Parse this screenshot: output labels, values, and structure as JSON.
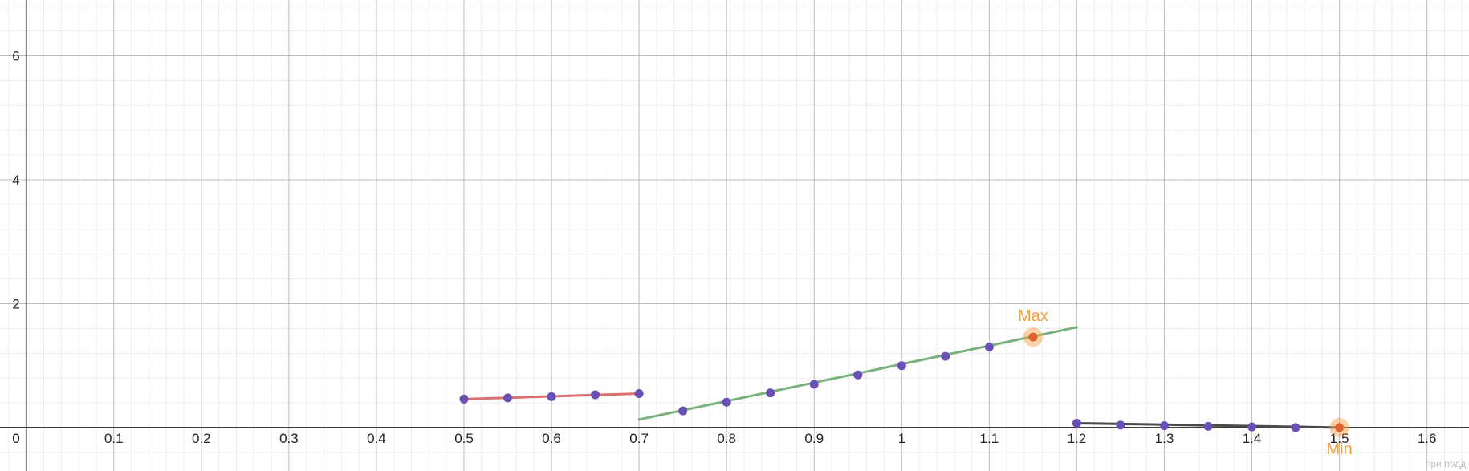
{
  "chart_data": {
    "type": "line",
    "title": "",
    "xlabel": "",
    "ylabel": "",
    "xlim": [
      -0.03,
      1.648
    ],
    "ylim": [
      -0.7,
      6.9
    ],
    "grid": true,
    "x_ticks": [
      {
        "value": 0,
        "label": "0"
      },
      {
        "value": 0.1,
        "label": "0.1"
      },
      {
        "value": 0.2,
        "label": "0.2"
      },
      {
        "value": 0.3,
        "label": "0.3"
      },
      {
        "value": 0.4,
        "label": "0.4"
      },
      {
        "value": 0.5,
        "label": "0.5"
      },
      {
        "value": 0.6,
        "label": "0.6"
      },
      {
        "value": 0.7,
        "label": "0.7"
      },
      {
        "value": 0.8,
        "label": "0.8"
      },
      {
        "value": 0.9,
        "label": "0.9"
      },
      {
        "value": 1.0,
        "label": "1"
      },
      {
        "value": 1.1,
        "label": "1.1"
      },
      {
        "value": 1.2,
        "label": "1.2"
      },
      {
        "value": 1.3,
        "label": "1.3"
      },
      {
        "value": 1.4,
        "label": "1.4"
      },
      {
        "value": 1.5,
        "label": "1.5"
      },
      {
        "value": 1.6,
        "label": "1.6"
      }
    ],
    "y_ticks": [
      {
        "value": 2,
        "label": "2"
      },
      {
        "value": 4,
        "label": "4"
      },
      {
        "value": 6,
        "label": "6"
      }
    ],
    "segments": [
      {
        "color": "#d9706e",
        "points": [
          [
            0.5,
            0.46
          ],
          [
            0.7,
            0.55
          ]
        ]
      },
      {
        "color": "#79b27c",
        "points": [
          [
            0.7,
            0.13
          ],
          [
            1.2,
            1.62
          ]
        ]
      },
      {
        "color": "#4a4a4a",
        "points": [
          [
            1.2,
            0.07
          ],
          [
            1.5,
            0.0
          ]
        ]
      }
    ],
    "points": [
      [
        0.5,
        0.46
      ],
      [
        0.55,
        0.48
      ],
      [
        0.6,
        0.5
      ],
      [
        0.65,
        0.53
      ],
      [
        0.7,
        0.55
      ],
      [
        0.75,
        0.27
      ],
      [
        0.8,
        0.41
      ],
      [
        0.85,
        0.56
      ],
      [
        0.9,
        0.7
      ],
      [
        0.95,
        0.85
      ],
      [
        1.0,
        1.0
      ],
      [
        1.05,
        1.15
      ],
      [
        1.1,
        1.3
      ],
      [
        1.2,
        0.07
      ],
      [
        1.25,
        0.04
      ],
      [
        1.3,
        0.03
      ],
      [
        1.35,
        0.02
      ],
      [
        1.4,
        0.01
      ],
      [
        1.45,
        0.0
      ]
    ],
    "point_color": "#6a4fb6",
    "annotations": [
      {
        "label": "Max",
        "x": 1.15,
        "y": 1.46,
        "position": "above"
      },
      {
        "label": "Min",
        "x": 1.5,
        "y": 0.0,
        "position": "below"
      }
    ],
    "annotation_color": "#f59b3c",
    "watermark": "при подд"
  }
}
